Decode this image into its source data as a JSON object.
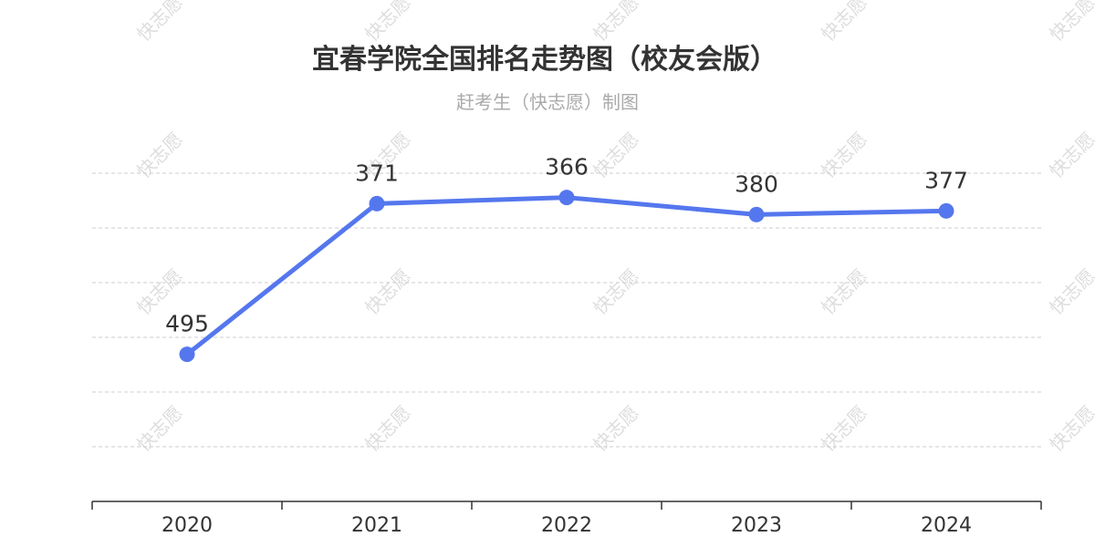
{
  "chart_data": {
    "type": "line",
    "title": "宜春学院全国排名走势图（校友会版）",
    "subtitle": "赶考生（快志愿）制图",
    "categories": [
      "2020",
      "2021",
      "2022",
      "2023",
      "2024"
    ],
    "series": [
      {
        "values": [
          495,
          371,
          366,
          380,
          377
        ]
      }
    ],
    "ylim": [
      346,
      616
    ],
    "y_inverted": true,
    "grid": true,
    "line_color": "#5577ee",
    "watermark": "快志愿"
  }
}
